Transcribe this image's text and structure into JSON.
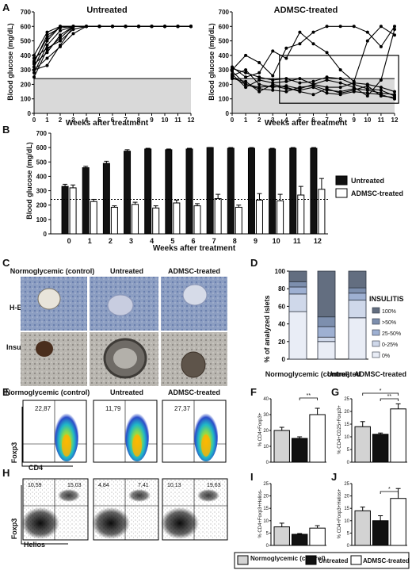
{
  "panels": {
    "A": {
      "letter": "A",
      "left_title": "Untreated",
      "right_title": "ADMSC-treated",
      "ylabel": "Blood glucose (mg/dL)",
      "xlabel": "Weeks after treatment",
      "yticks": [
        "0",
        "100",
        "200",
        "300",
        "400",
        "500",
        "600",
        "700"
      ],
      "xticks": [
        "0",
        "1",
        "2",
        "3",
        "4",
        "5",
        "6",
        "7",
        "8",
        "9",
        "10",
        "11",
        "12"
      ],
      "threshold": 240
    },
    "B": {
      "letter": "B",
      "ylabel": "Blood glucose (mg/dL)",
      "xlabel": "Weeks after treatment",
      "yticks": [
        "0",
        "100",
        "200",
        "300",
        "400",
        "500",
        "600",
        "700"
      ],
      "legend": [
        "Untreated",
        "ADMSC-treated"
      ]
    },
    "C": {
      "letter": "C",
      "cols": [
        "Normoglycemic (control)",
        "Untreated",
        "ADMSC-treated"
      ],
      "rows": [
        "H-E",
        "Insulin"
      ]
    },
    "D": {
      "letter": "D",
      "ylabel": "% of analyzed islets",
      "legend_title": "INSULITIS",
      "legend": [
        "100%",
        ">50%",
        "25-50%",
        "0-25%",
        "0%"
      ],
      "groups": [
        "Normoglycemic (control)",
        "Untreated",
        "ADMSC-treated"
      ],
      "yticks": [
        "0",
        "20",
        "40",
        "60",
        "80",
        "100"
      ]
    },
    "E": {
      "letter": "E",
      "cols": [
        "Normoglycemic (control)",
        "Untreated",
        "ADMSC-treated"
      ],
      "values": [
        "22,87",
        "11,79",
        "27,37"
      ],
      "ylabel": "Foxp3",
      "xlabel": "CD4"
    },
    "F": {
      "letter": "F",
      "ylabel": "% CD4+Foxp3+",
      "yticks": [
        "0",
        "10",
        "20",
        "30",
        "40"
      ],
      "sig": "**"
    },
    "G": {
      "letter": "G",
      "ylabel": "% CD4+CD25+Foxp3+",
      "yticks": [
        "0",
        "5",
        "10",
        "15",
        "20",
        "25"
      ],
      "sig1": "*",
      "sig2": "**"
    },
    "H": {
      "letter": "H",
      "values": [
        [
          "10,59",
          "15,03"
        ],
        [
          "4,84",
          "7,41"
        ],
        [
          "10,13",
          "19,63"
        ]
      ],
      "ylabel": "Foxp3",
      "xlabel": "Helios"
    },
    "I": {
      "letter": "I",
      "ylabel": "% CD4+Foxp3+Helios-",
      "yticks": [
        "0",
        "5",
        "10",
        "15",
        "20",
        "25"
      ]
    },
    "J": {
      "letter": "J",
      "ylabel": "% CD4+Foxp3+Helios+",
      "yticks": [
        "0",
        "5",
        "10",
        "15",
        "20",
        "25"
      ],
      "sig": "*"
    }
  },
  "bottom_legend": [
    "Normoglycemic (control)",
    "Untreated",
    "ADMSC-treated"
  ],
  "colors": {
    "normo": "#d3d3d3",
    "untreated": "#111111",
    "admsc": "#ffffff",
    "shade": "#d9d9d9"
  },
  "chart_data": [
    {
      "id": "A-untreated",
      "type": "line",
      "x": [
        0,
        1,
        2,
        3,
        4,
        5,
        6,
        7,
        8,
        9,
        10,
        11,
        12
      ],
      "series": [
        {
          "values": [
            250,
            440,
            520,
            600,
            600,
            600,
            600,
            600,
            600,
            600,
            600,
            600,
            600
          ]
        },
        {
          "values": [
            280,
            470,
            570,
            600,
            600,
            600,
            600,
            600,
            600,
            600,
            600,
            600,
            600
          ]
        },
        {
          "values": [
            300,
            380,
            460,
            550,
            600,
            600,
            600,
            600,
            600,
            600,
            600,
            600,
            600
          ]
        },
        {
          "values": [
            320,
            500,
            600,
            600,
            600,
            600,
            600,
            600,
            600,
            600,
            600,
            600,
            600
          ]
        },
        {
          "values": [
            340,
            420,
            540,
            600,
            600,
            600,
            600,
            600,
            600,
            600,
            600,
            600,
            600
          ]
        },
        {
          "values": [
            360,
            520,
            600,
            600,
            600,
            600,
            600,
            600,
            600,
            600,
            600,
            600,
            600
          ]
        },
        {
          "values": [
            380,
            450,
            500,
            580,
            600,
            600,
            600,
            600,
            600,
            600,
            600,
            600,
            600
          ]
        },
        {
          "values": [
            400,
            560,
            600,
            600,
            600,
            600,
            600,
            600,
            600,
            600,
            600,
            600,
            600
          ]
        },
        {
          "values": [
            300,
            330,
            470,
            600,
            600,
            600,
            600,
            600,
            600,
            600,
            600,
            600,
            600
          ]
        },
        {
          "values": [
            350,
            540,
            590,
            600,
            600,
            600,
            600,
            600,
            600,
            600,
            600,
            600,
            600
          ]
        }
      ],
      "xlim": [
        0,
        12
      ],
      "ylim": [
        0,
        700
      ]
    },
    {
      "id": "A-admsc",
      "type": "line",
      "x": [
        0,
        1,
        2,
        3,
        4,
        5,
        6,
        7,
        8,
        9,
        10,
        11,
        12
      ],
      "series": [
        {
          "values": [
            300,
            400,
            350,
            260,
            450,
            480,
            560,
            600,
            600,
            600,
            560,
            460,
            600
          ]
        },
        {
          "values": [
            320,
            250,
            280,
            430,
            380,
            560,
            480,
            420,
            300,
            220,
            500,
            600,
            540
          ]
        },
        {
          "values": [
            270,
            180,
            230,
            210,
            220,
            240,
            200,
            230,
            210,
            180,
            120,
            230,
            580
          ]
        },
        {
          "values": [
            260,
            300,
            200,
            180,
            190,
            170,
            200,
            180,
            180,
            210,
            200,
            180,
            150
          ]
        },
        {
          "values": [
            250,
            200,
            170,
            160,
            150,
            180,
            190,
            160,
            150,
            170,
            160,
            140,
            130
          ]
        },
        {
          "values": [
            240,
            220,
            150,
            200,
            180,
            150,
            130,
            170,
            140,
            160,
            190,
            120,
            110
          ]
        },
        {
          "values": [
            310,
            280,
            250,
            230,
            240,
            210,
            220,
            250,
            240,
            200,
            170,
            160,
            120
          ]
        },
        {
          "values": [
            290,
            200,
            180,
            190,
            170,
            160,
            180,
            140,
            130,
            150,
            140,
            130,
            100
          ]
        }
      ],
      "xlim": [
        0,
        12
      ],
      "ylim": [
        0,
        700
      ]
    },
    {
      "id": "B",
      "type": "bar",
      "categories": [
        "0",
        "1",
        "2",
        "3",
        "4",
        "5",
        "6",
        "7",
        "8",
        "9",
        "10",
        "11",
        "12"
      ],
      "series": [
        {
          "name": "Untreated",
          "values": [
            330,
            460,
            490,
            575,
            590,
            585,
            590,
            600,
            595,
            595,
            590,
            595,
            595
          ],
          "err": [
            15,
            10,
            15,
            10,
            5,
            5,
            5,
            0,
            5,
            5,
            5,
            5,
            5
          ]
        },
        {
          "name": "ADMSC-treated",
          "values": [
            320,
            225,
            185,
            205,
            180,
            215,
            195,
            245,
            185,
            235,
            230,
            270,
            310
          ],
          "err": [
            20,
            15,
            10,
            15,
            15,
            20,
            15,
            30,
            15,
            45,
            45,
            60,
            75
          ]
        }
      ],
      "threshold": 240,
      "ylim": [
        0,
        700
      ]
    },
    {
      "id": "D",
      "type": "bar",
      "categories": [
        "Normoglycemic (control)",
        "Untreated",
        "ADMSC-treated"
      ],
      "series": [
        {
          "name": "0%",
          "values": [
            54,
            20,
            47
          ]
        },
        {
          "name": "0-25%",
          "values": [
            20,
            5,
            20
          ]
        },
        {
          "name": "25-50%",
          "values": [
            8,
            12,
            8
          ]
        },
        {
          "name": ">50%",
          "values": [
            6,
            11,
            6
          ]
        },
        {
          "name": "100%",
          "values": [
            12,
            52,
            19
          ]
        }
      ],
      "ylim": [
        0,
        100
      ]
    },
    {
      "id": "F",
      "type": "bar",
      "categories": [
        "Normoglycemic (control)",
        "Untreated",
        "ADMSC-treated"
      ],
      "values": [
        20,
        15,
        30
      ],
      "err": [
        2,
        1,
        4
      ],
      "ylim": [
        0,
        40
      ]
    },
    {
      "id": "G",
      "type": "bar",
      "categories": [
        "Normoglycemic (control)",
        "Untreated",
        "ADMSC-treated"
      ],
      "values": [
        14,
        11,
        21
      ],
      "err": [
        2,
        0.5,
        2
      ],
      "ylim": [
        0,
        25
      ]
    },
    {
      "id": "I",
      "type": "bar",
      "categories": [
        "Normoglycemic (control)",
        "Untreated",
        "ADMSC-treated"
      ],
      "values": [
        7.5,
        4.5,
        7
      ],
      "err": [
        1.5,
        0.3,
        1
      ],
      "ylim": [
        0,
        25
      ]
    },
    {
      "id": "J",
      "type": "bar",
      "categories": [
        "Normoglycemic (control)",
        "Untreated",
        "ADMSC-treated"
      ],
      "values": [
        14,
        10,
        19
      ],
      "err": [
        1.5,
        2,
        4
      ],
      "ylim": [
        0,
        25
      ]
    }
  ]
}
